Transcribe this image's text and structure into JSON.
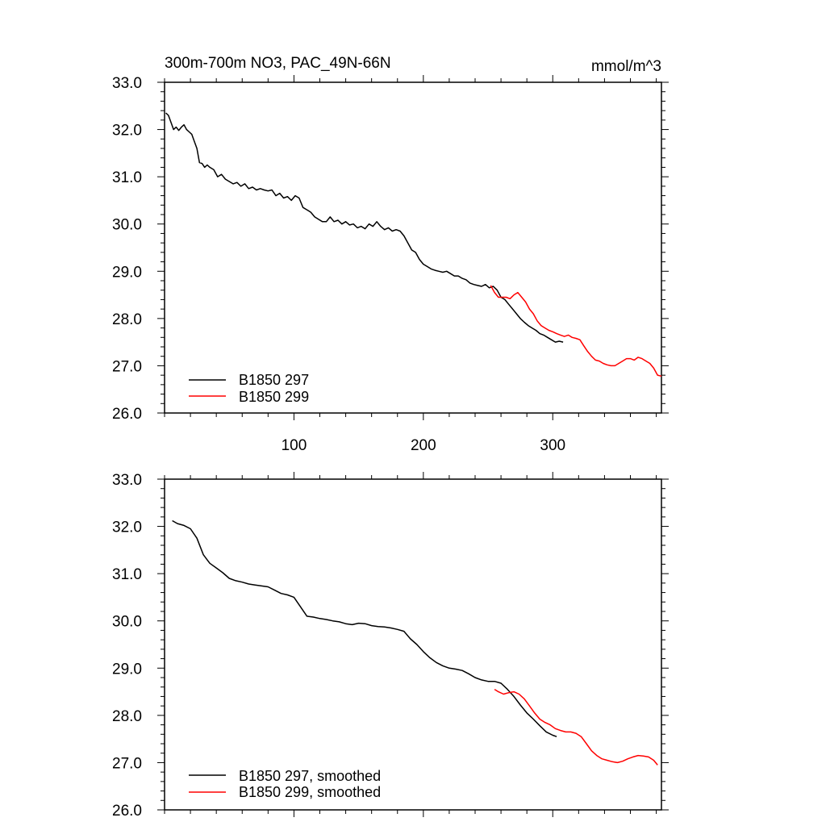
{
  "chart_data": [
    {
      "type": "line",
      "title_left": "300m-700m NO3, PAC_49N-66N",
      "title_right": "mmol/m^3",
      "xlim": [
        0,
        384
      ],
      "ylim": [
        26.0,
        33.0
      ],
      "y_ticks": [
        "26.0",
        "27.0",
        "28.0",
        "29.0",
        "30.0",
        "31.0",
        "32.0",
        "33.0"
      ],
      "y_tick_values": [
        26,
        27,
        28,
        29,
        30,
        31,
        32,
        33
      ],
      "x_ticks": [
        "100",
        "200",
        "300"
      ],
      "x_tick_values": [
        100,
        200,
        300
      ],
      "legend": [
        "B1850 297",
        "B1850 299"
      ],
      "series": [
        {
          "name": "B1850 297",
          "color": "#000000",
          "x": [
            1,
            3,
            5,
            7,
            9,
            11,
            13,
            15,
            17,
            19,
            21,
            23,
            25,
            27,
            29,
            31,
            33,
            35,
            38,
            41,
            44,
            47,
            50,
            53,
            56,
            59,
            62,
            65,
            68,
            71,
            74,
            77,
            80,
            83,
            86,
            89,
            92,
            95,
            98,
            101,
            104,
            107,
            110,
            113,
            116,
            119,
            122,
            125,
            128,
            131,
            134,
            137,
            140,
            143,
            146,
            149,
            152,
            155,
            158,
            161,
            164,
            167,
            170,
            173,
            176,
            179,
            182,
            185,
            188,
            191,
            194,
            197,
            200,
            203,
            206,
            209,
            212,
            215,
            218,
            221,
            224,
            227,
            230,
            233,
            236,
            239,
            242,
            245,
            248,
            251,
            254,
            257,
            260,
            263,
            266,
            269,
            272,
            275,
            278,
            281,
            284,
            287,
            290,
            293,
            296,
            299,
            302,
            305,
            308
          ],
          "values": [
            32.35,
            32.3,
            32.15,
            32.0,
            32.05,
            31.98,
            32.05,
            32.1,
            32.0,
            31.95,
            31.9,
            31.75,
            31.6,
            31.3,
            31.28,
            31.2,
            31.25,
            31.2,
            31.15,
            31.0,
            31.05,
            30.95,
            30.9,
            30.85,
            30.88,
            30.8,
            30.85,
            30.75,
            30.78,
            30.72,
            30.75,
            30.72,
            30.7,
            30.72,
            30.6,
            30.65,
            30.55,
            30.58,
            30.5,
            30.6,
            30.55,
            30.35,
            30.3,
            30.25,
            30.15,
            30.1,
            30.05,
            30.05,
            30.15,
            30.05,
            30.08,
            30.0,
            30.05,
            29.98,
            30.0,
            29.92,
            29.95,
            29.9,
            30.0,
            29.95,
            30.05,
            29.95,
            29.88,
            29.92,
            29.85,
            29.88,
            29.85,
            29.75,
            29.6,
            29.45,
            29.4,
            29.25,
            29.15,
            29.1,
            29.05,
            29.02,
            29.0,
            28.98,
            29.0,
            28.95,
            28.9,
            28.9,
            28.85,
            28.82,
            28.75,
            28.72,
            28.7,
            28.68,
            28.72,
            28.65,
            28.68,
            28.6,
            28.45,
            28.4,
            28.3,
            28.2,
            28.1,
            28.0,
            27.92,
            27.85,
            27.8,
            27.75,
            27.68,
            27.65,
            27.6,
            27.55,
            27.5,
            27.52,
            27.5
          ]
        },
        {
          "name": "B1850 299",
          "color": "#ff0000",
          "x": [
            252,
            255,
            258,
            261,
            264,
            267,
            270,
            273,
            276,
            279,
            282,
            285,
            288,
            291,
            294,
            297,
            300,
            303,
            306,
            309,
            312,
            315,
            318,
            321,
            324,
            327,
            330,
            333,
            336,
            339,
            342,
            345,
            348,
            351,
            354,
            357,
            360,
            363,
            366,
            369,
            372,
            375,
            378,
            381,
            384
          ],
          "values": [
            28.7,
            28.55,
            28.45,
            28.45,
            28.45,
            28.42,
            28.5,
            28.55,
            28.45,
            28.35,
            28.2,
            28.1,
            27.95,
            27.85,
            27.8,
            27.75,
            27.72,
            27.68,
            27.65,
            27.62,
            27.65,
            27.6,
            27.58,
            27.55,
            27.42,
            27.3,
            27.2,
            27.12,
            27.1,
            27.05,
            27.02,
            27.0,
            27.0,
            27.05,
            27.1,
            27.15,
            27.15,
            27.12,
            27.18,
            27.15,
            27.1,
            27.05,
            26.95,
            26.8,
            26.78
          ]
        }
      ]
    },
    {
      "type": "line",
      "xlim": [
        0,
        384
      ],
      "ylim": [
        26.0,
        33.0
      ],
      "y_ticks": [
        "26.0",
        "27.0",
        "28.0",
        "29.0",
        "30.0",
        "31.0",
        "32.0",
        "33.0"
      ],
      "y_tick_values": [
        26,
        27,
        28,
        29,
        30,
        31,
        32,
        33
      ],
      "x_tick_values": [
        100,
        200,
        300
      ],
      "legend": [
        "B1850 297, smoothed",
        "B1850 299, smoothed"
      ],
      "series": [
        {
          "name": "B1850 297, smoothed",
          "color": "#000000",
          "x": [
            6,
            10,
            15,
            20,
            25,
            30,
            35,
            40,
            45,
            50,
            55,
            60,
            65,
            70,
            75,
            80,
            85,
            90,
            95,
            100,
            105,
            110,
            115,
            120,
            125,
            130,
            135,
            140,
            145,
            150,
            155,
            160,
            165,
            170,
            175,
            180,
            185,
            190,
            195,
            200,
            205,
            210,
            215,
            220,
            225,
            230,
            235,
            240,
            245,
            250,
            255,
            260,
            265,
            270,
            275,
            280,
            285,
            290,
            295,
            300,
            303
          ],
          "values": [
            32.12,
            32.06,
            32.02,
            31.95,
            31.75,
            31.4,
            31.22,
            31.12,
            31.02,
            30.9,
            30.85,
            30.82,
            30.78,
            30.76,
            30.74,
            30.72,
            30.65,
            30.58,
            30.55,
            30.5,
            30.3,
            30.1,
            30.08,
            30.05,
            30.03,
            30.0,
            29.98,
            29.94,
            29.92,
            29.95,
            29.94,
            29.9,
            29.88,
            29.87,
            29.85,
            29.82,
            29.78,
            29.62,
            29.5,
            29.35,
            29.22,
            29.12,
            29.05,
            29.0,
            28.98,
            28.95,
            28.88,
            28.8,
            28.75,
            28.72,
            28.72,
            28.68,
            28.55,
            28.4,
            28.22,
            28.05,
            27.92,
            27.78,
            27.65,
            27.58,
            27.55
          ]
        },
        {
          "name": "B1850 299, smoothed",
          "color": "#ff0000",
          "x": [
            255,
            258,
            262,
            266,
            270,
            274,
            278,
            282,
            286,
            290,
            294,
            298,
            302,
            306,
            310,
            314,
            318,
            322,
            326,
            330,
            334,
            338,
            342,
            346,
            350,
            354,
            358,
            362,
            366,
            370,
            374,
            378,
            381
          ],
          "values": [
            28.55,
            28.5,
            28.45,
            28.48,
            28.5,
            28.45,
            28.35,
            28.2,
            28.05,
            27.92,
            27.85,
            27.8,
            27.72,
            27.68,
            27.65,
            27.65,
            27.62,
            27.55,
            27.4,
            27.25,
            27.15,
            27.08,
            27.05,
            27.02,
            27.0,
            27.03,
            27.08,
            27.12,
            27.15,
            27.14,
            27.12,
            27.05,
            26.95
          ]
        }
      ]
    }
  ]
}
